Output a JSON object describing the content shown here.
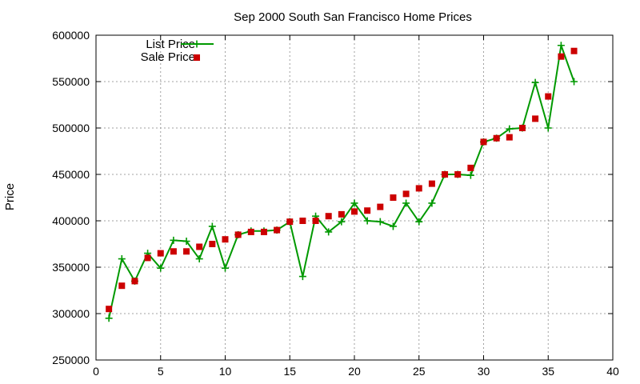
{
  "chart_data": {
    "type": "line",
    "title": "Sep 2000 South San Francisco Home Prices",
    "xlabel": "",
    "ylabel": "Price",
    "xlim": [
      0,
      40
    ],
    "ylim": [
      250000,
      600000
    ],
    "x_ticks": [
      0,
      5,
      10,
      15,
      20,
      25,
      30,
      35,
      40
    ],
    "y_ticks": [
      250000,
      300000,
      350000,
      400000,
      450000,
      500000,
      550000,
      600000
    ],
    "grid": true,
    "legend_position": "top-left",
    "x": [
      1,
      2,
      3,
      4,
      5,
      6,
      7,
      8,
      9,
      10,
      11,
      12,
      13,
      14,
      15,
      16,
      17,
      18,
      19,
      20,
      21,
      22,
      23,
      24,
      25,
      26,
      27,
      28,
      29,
      30,
      31,
      32,
      33,
      34,
      35,
      36,
      37
    ],
    "series": [
      {
        "name": "List Price",
        "style": "lines+crosses",
        "color": "#009900",
        "values": [
          295000,
          359000,
          335000,
          365000,
          349000,
          379000,
          378000,
          359000,
          394000,
          349000,
          385000,
          389000,
          389000,
          390000,
          399000,
          340000,
          405000,
          388000,
          399000,
          419000,
          400000,
          399000,
          394000,
          419000,
          399000,
          419000,
          450000,
          450000,
          449000,
          485000,
          489000,
          499000,
          500000,
          549000,
          500000,
          589000,
          550000
        ]
      },
      {
        "name": "Sale Price",
        "style": "squares",
        "color": "#cc0000",
        "values": [
          305000,
          330000,
          335000,
          360000,
          365000,
          367000,
          367000,
          372000,
          375000,
          380000,
          385000,
          388000,
          388000,
          390000,
          399000,
          400000,
          400000,
          405000,
          407000,
          410000,
          411000,
          415000,
          425000,
          429000,
          435000,
          440000,
          450000,
          450000,
          457000,
          485000,
          489000,
          490000,
          500000,
          510000,
          534000,
          577000,
          583000
        ]
      }
    ]
  }
}
